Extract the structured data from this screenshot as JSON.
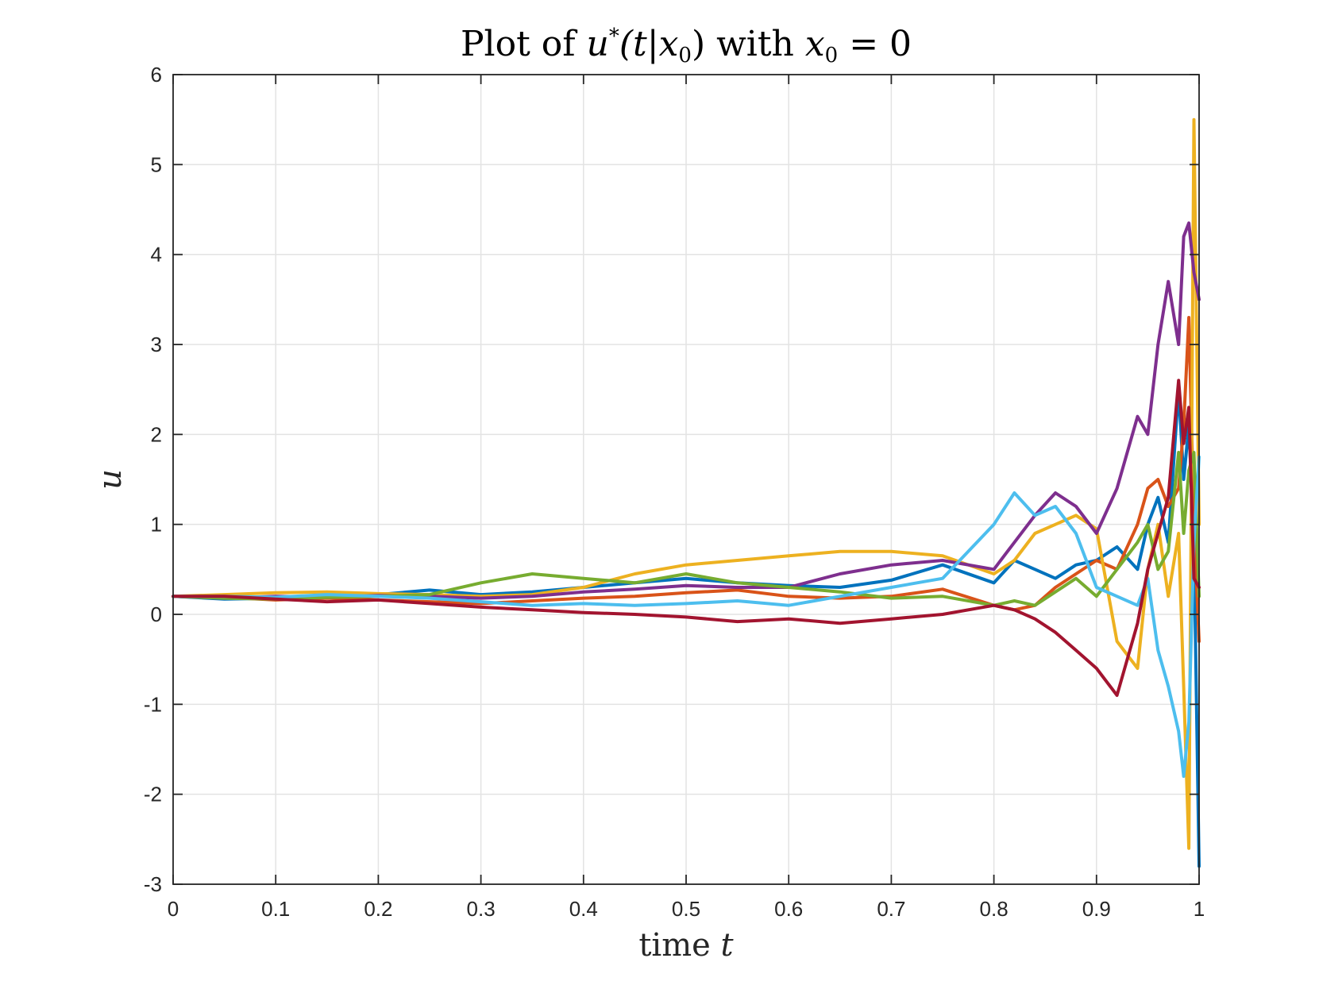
{
  "chart_data": {
    "type": "line",
    "title_main": "Plot of ",
    "title_math_u": "u",
    "title_math_sup": "*",
    "title_math_args": "(t|x",
    "title_math_sub": "0",
    "title_math_close": ")",
    "title_with": " with ",
    "title_x0": "x",
    "title_x0_sub": "0",
    "title_eq": " = 0",
    "xlabel": "time ",
    "xlabel_var": "t",
    "ylabel": "u",
    "xlim": [
      0,
      1
    ],
    "ylim": [
      -3,
      6
    ],
    "grid": true,
    "xticks": [
      0,
      0.1,
      0.2,
      0.3,
      0.4,
      0.5,
      0.6,
      0.7,
      0.8,
      0.9,
      1
    ],
    "xtick_labels": [
      "0",
      "0.1",
      "0.2",
      "0.3",
      "0.4",
      "0.5",
      "0.6",
      "0.7",
      "0.8",
      "0.9",
      "1"
    ],
    "yticks": [
      -3,
      -2,
      -1,
      0,
      1,
      2,
      3,
      4,
      5,
      6
    ],
    "ytick_labels": [
      "-3",
      "-2",
      "-1",
      "0",
      "1",
      "2",
      "3",
      "4",
      "5",
      "6"
    ],
    "series": [
      {
        "color": "#0072BD",
        "x": [
          0,
          0.05,
          0.1,
          0.15,
          0.2,
          0.25,
          0.3,
          0.35,
          0.4,
          0.45,
          0.5,
          0.55,
          0.6,
          0.65,
          0.7,
          0.75,
          0.8,
          0.82,
          0.84,
          0.86,
          0.88,
          0.9,
          0.92,
          0.94,
          0.95,
          0.96,
          0.97,
          0.98,
          0.985,
          0.99,
          0.995,
          1.0
        ],
        "y": [
          0.2,
          0.17,
          0.18,
          0.2,
          0.22,
          0.27,
          0.22,
          0.25,
          0.3,
          0.35,
          0.4,
          0.35,
          0.32,
          0.3,
          0.38,
          0.55,
          0.35,
          0.6,
          0.5,
          0.4,
          0.55,
          0.6,
          0.75,
          0.5,
          1.0,
          1.3,
          0.8,
          2.5,
          1.5,
          2.1,
          0.8,
          -2.8
        ]
      },
      {
        "color": "#D95319",
        "x": [
          0,
          0.05,
          0.1,
          0.15,
          0.2,
          0.25,
          0.3,
          0.35,
          0.4,
          0.45,
          0.5,
          0.55,
          0.6,
          0.65,
          0.7,
          0.75,
          0.8,
          0.82,
          0.84,
          0.86,
          0.88,
          0.9,
          0.92,
          0.94,
          0.95,
          0.96,
          0.97,
          0.98,
          0.985,
          0.99,
          0.995,
          1.0
        ],
        "y": [
          0.2,
          0.19,
          0.16,
          0.18,
          0.16,
          0.14,
          0.12,
          0.15,
          0.18,
          0.2,
          0.24,
          0.27,
          0.2,
          0.18,
          0.2,
          0.28,
          0.1,
          0.05,
          0.1,
          0.3,
          0.45,
          0.6,
          0.5,
          1.0,
          1.4,
          1.5,
          1.2,
          1.4,
          2.1,
          3.3,
          1.0,
          -0.3
        ]
      },
      {
        "color": "#EDB120",
        "x": [
          0,
          0.05,
          0.1,
          0.15,
          0.2,
          0.25,
          0.3,
          0.35,
          0.4,
          0.45,
          0.5,
          0.55,
          0.6,
          0.65,
          0.7,
          0.75,
          0.8,
          0.82,
          0.84,
          0.86,
          0.88,
          0.9,
          0.92,
          0.94,
          0.95,
          0.96,
          0.97,
          0.98,
          0.985,
          0.99,
          0.995,
          1.0
        ],
        "y": [
          0.2,
          0.22,
          0.24,
          0.25,
          0.23,
          0.22,
          0.2,
          0.22,
          0.3,
          0.45,
          0.55,
          0.6,
          0.65,
          0.7,
          0.7,
          0.65,
          0.45,
          0.6,
          0.9,
          1.0,
          1.1,
          0.95,
          -0.3,
          -0.6,
          0.5,
          1.0,
          0.2,
          0.9,
          -0.8,
          -2.6,
          5.5,
          1.0
        ]
      },
      {
        "color": "#7E2F8E",
        "x": [
          0,
          0.05,
          0.1,
          0.15,
          0.2,
          0.25,
          0.3,
          0.35,
          0.4,
          0.45,
          0.5,
          0.55,
          0.6,
          0.65,
          0.7,
          0.75,
          0.8,
          0.82,
          0.84,
          0.86,
          0.88,
          0.9,
          0.92,
          0.94,
          0.95,
          0.96,
          0.97,
          0.98,
          0.985,
          0.99,
          0.995,
          1.0
        ],
        "y": [
          0.2,
          0.18,
          0.2,
          0.19,
          0.21,
          0.2,
          0.18,
          0.2,
          0.25,
          0.28,
          0.32,
          0.3,
          0.3,
          0.45,
          0.55,
          0.6,
          0.5,
          0.8,
          1.1,
          1.35,
          1.2,
          0.9,
          1.4,
          2.2,
          2.0,
          3.0,
          3.7,
          3.0,
          4.2,
          4.35,
          3.8,
          3.5
        ]
      },
      {
        "color": "#77AC30",
        "x": [
          0,
          0.05,
          0.1,
          0.15,
          0.2,
          0.25,
          0.3,
          0.35,
          0.4,
          0.45,
          0.5,
          0.55,
          0.6,
          0.65,
          0.7,
          0.75,
          0.8,
          0.82,
          0.84,
          0.86,
          0.88,
          0.9,
          0.92,
          0.94,
          0.95,
          0.96,
          0.97,
          0.98,
          0.985,
          0.99,
          0.995,
          1.0
        ],
        "y": [
          0.2,
          0.18,
          0.17,
          0.19,
          0.2,
          0.22,
          0.35,
          0.45,
          0.4,
          0.35,
          0.45,
          0.35,
          0.3,
          0.25,
          0.18,
          0.2,
          0.1,
          0.15,
          0.1,
          0.25,
          0.4,
          0.2,
          0.5,
          0.8,
          1.0,
          0.5,
          0.7,
          1.8,
          0.9,
          1.6,
          1.8,
          0.2
        ]
      },
      {
        "color": "#4DBEEE",
        "x": [
          0,
          0.05,
          0.1,
          0.15,
          0.2,
          0.25,
          0.3,
          0.35,
          0.4,
          0.45,
          0.5,
          0.55,
          0.6,
          0.65,
          0.7,
          0.75,
          0.8,
          0.82,
          0.84,
          0.86,
          0.88,
          0.9,
          0.92,
          0.94,
          0.95,
          0.96,
          0.97,
          0.98,
          0.985,
          0.99,
          0.995,
          1.0
        ],
        "y": [
          0.2,
          0.2,
          0.19,
          0.22,
          0.2,
          0.18,
          0.14,
          0.1,
          0.12,
          0.1,
          0.12,
          0.15,
          0.1,
          0.2,
          0.3,
          0.4,
          1.0,
          1.35,
          1.1,
          1.2,
          0.9,
          0.3,
          0.2,
          0.1,
          0.4,
          -0.4,
          -0.8,
          -1.3,
          -1.8,
          -1.2,
          0.8,
          1.75
        ]
      },
      {
        "color": "#A2142F",
        "x": [
          0,
          0.05,
          0.1,
          0.15,
          0.2,
          0.25,
          0.3,
          0.35,
          0.4,
          0.45,
          0.5,
          0.55,
          0.6,
          0.65,
          0.7,
          0.75,
          0.8,
          0.82,
          0.84,
          0.86,
          0.88,
          0.9,
          0.92,
          0.94,
          0.95,
          0.96,
          0.97,
          0.98,
          0.985,
          0.99,
          0.995,
          1.0
        ],
        "y": [
          0.2,
          0.2,
          0.17,
          0.14,
          0.16,
          0.12,
          0.08,
          0.05,
          0.02,
          0.0,
          -0.03,
          -0.08,
          -0.05,
          -0.1,
          -0.05,
          0.0,
          0.1,
          0.05,
          -0.05,
          -0.2,
          -0.4,
          -0.6,
          -0.9,
          -0.1,
          0.5,
          0.9,
          1.3,
          2.6,
          1.9,
          2.3,
          0.4,
          0.3
        ]
      }
    ]
  }
}
